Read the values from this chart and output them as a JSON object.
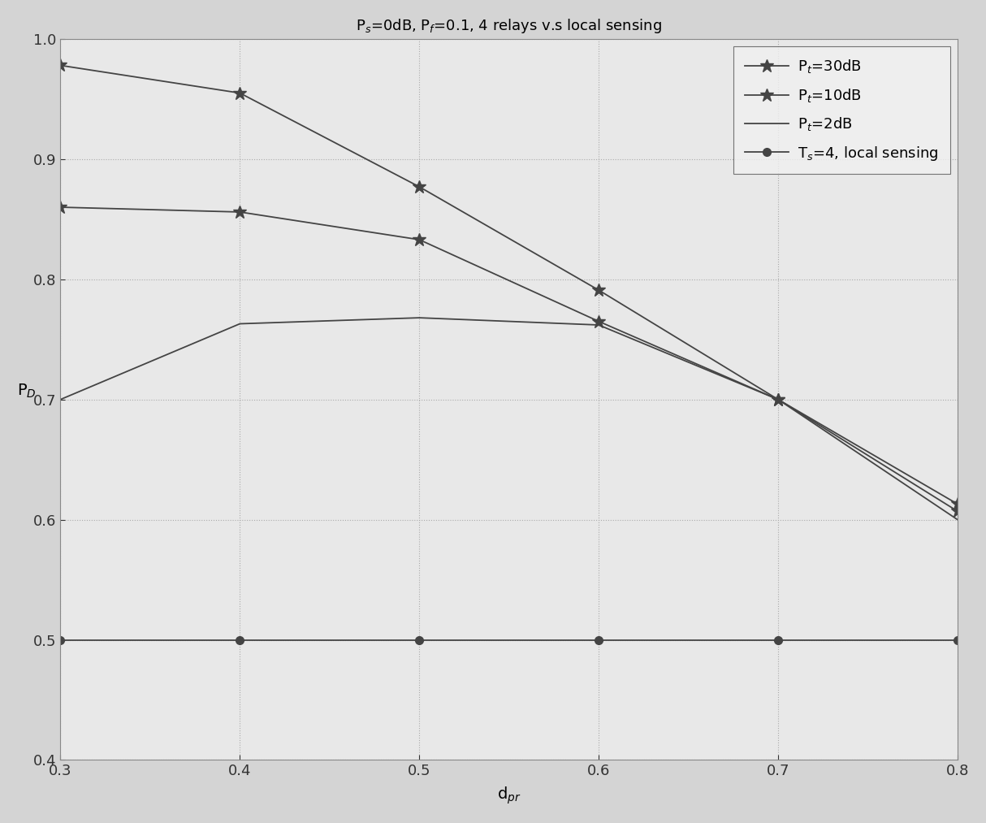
{
  "title_parts": [
    "P",
    "s",
    "=0dB, P",
    "f",
    "=0.1, 4 relays v.s local sensing"
  ],
  "xlabel": "d$_{pr}$",
  "ylabel": "P$_D$",
  "xlim": [
    0.3,
    0.8
  ],
  "ylim": [
    0.4,
    1.0
  ],
  "xticks": [
    0.3,
    0.4,
    0.5,
    0.6,
    0.7,
    0.8
  ],
  "yticks": [
    0.4,
    0.5,
    0.6,
    0.7,
    0.8,
    0.9,
    1.0
  ],
  "x": [
    0.3,
    0.4,
    0.5,
    0.6,
    0.7,
    0.8
  ],
  "series": [
    {
      "label": "P$_t$=30dB",
      "y": [
        0.978,
        0.955,
        0.877,
        0.791,
        0.7,
        0.613
      ],
      "color": "#444444",
      "marker": "*",
      "linestyle": "-",
      "linewidth": 1.3,
      "markersize": 12
    },
    {
      "label": "P$_t$=10dB",
      "y": [
        0.86,
        0.856,
        0.833,
        0.765,
        0.7,
        0.607
      ],
      "color": "#444444",
      "marker": "*",
      "linestyle": "-",
      "linewidth": 1.3,
      "markersize": 12
    },
    {
      "label": "P$_t$=2dB",
      "y": [
        0.7,
        0.763,
        0.768,
        0.762,
        0.7,
        0.6
      ],
      "color": "#444444",
      "marker": "None",
      "linestyle": "-",
      "linewidth": 1.3,
      "markersize": 0
    },
    {
      "label": "T$_s$=4, local sensing",
      "y": [
        0.5,
        0.5,
        0.5,
        0.5,
        0.5,
        0.5
      ],
      "color": "#444444",
      "marker": "o",
      "linestyle": "-",
      "linewidth": 1.3,
      "markersize": 7
    }
  ],
  "grid_color": "#aaaaaa",
  "grid_linestyle": ":",
  "grid_linewidth": 0.8,
  "axes_facecolor": "#e8e8e8",
  "figure_facecolor": "#d4d4d4",
  "legend_loc": "upper right",
  "legend_fontsize": 13,
  "tick_fontsize": 13,
  "title_fontsize": 13,
  "label_fontsize": 14
}
